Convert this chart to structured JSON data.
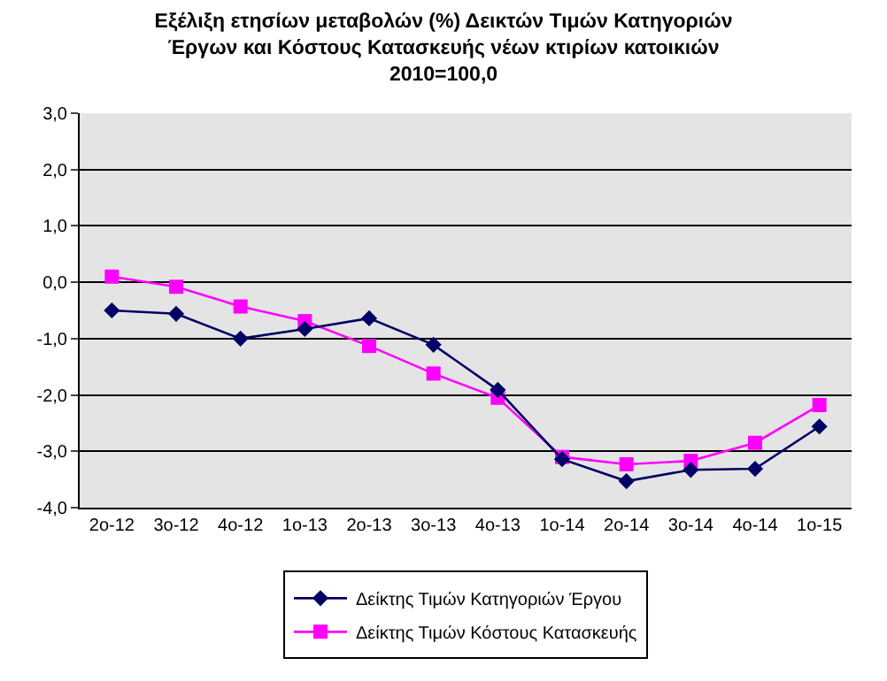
{
  "chart_data": {
    "type": "line",
    "title": "Εξέλιξη ετησίων μεταβολών (%) Δεικτών Τιμών Κατηγοριών Έργων και Κόστους Κατασκευής νέων κτιρίων κατοικιών 2010=100,0",
    "categories": [
      "2o-12",
      "3o-12",
      "4o-12",
      "1o-13",
      "2o-13",
      "3o-13",
      "4o-13",
      "1o-14",
      "2o-14",
      "3o-14",
      "4o-14",
      "1o-15"
    ],
    "series": [
      {
        "name": "Δείκτης Τιμών Κατηγοριών Έργου",
        "color": "#000066",
        "marker": "diamond",
        "values": [
          -0.5,
          -0.56,
          -1.0,
          -0.83,
          -0.64,
          -1.11,
          -1.91,
          -3.14,
          -3.53,
          -3.33,
          -3.31,
          -2.56
        ]
      },
      {
        "name": "Δείκτης Τιμών Κόστους Κατασκευής",
        "color": "#ff00ff",
        "marker": "square",
        "values": [
          0.1,
          -0.08,
          -0.43,
          -0.69,
          -1.13,
          -1.62,
          -2.05,
          -3.1,
          -3.23,
          -3.17,
          -2.85,
          -2.18
        ]
      }
    ],
    "ylim": [
      -4,
      3
    ],
    "yticks": [
      {
        "value": -4,
        "label": "-4,0"
      },
      {
        "value": -3,
        "label": "-3,0"
      },
      {
        "value": -2,
        "label": "-2,0"
      },
      {
        "value": -1,
        "label": "-1,0"
      },
      {
        "value": 0,
        "label": "0,0"
      },
      {
        "value": 1,
        "label": "1,0"
      },
      {
        "value": 2,
        "label": "2,0"
      },
      {
        "value": 3,
        "label": "3,0"
      }
    ],
    "grid": "y",
    "legend": "bottom"
  }
}
